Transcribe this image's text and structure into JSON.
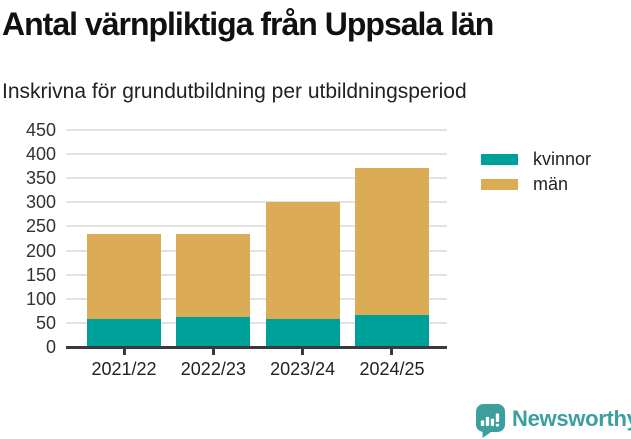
{
  "chart_data": {
    "type": "bar",
    "stacked": true,
    "title": "Antal värnpliktiga från Uppsala län",
    "subtitle": "Inskrivna för grundutbildning per utbildningsperiod",
    "categories": [
      "2021/22",
      "2022/23",
      "2023/24",
      "2024/25"
    ],
    "series": [
      {
        "name": "kvinnor",
        "color": "#00A09A",
        "values": [
          58,
          63,
          58,
          67
        ]
      },
      {
        "name": "män",
        "color": "#DBAC55",
        "values": [
          176,
          171,
          242,
          304
        ]
      }
    ],
    "stack_totals": [
      234,
      234,
      300,
      371
    ],
    "xlabel": "",
    "ylabel": "",
    "ylim": [
      0,
      450
    ],
    "ytick_step": 50,
    "yticks": [
      0,
      50,
      100,
      150,
      200,
      250,
      300,
      350,
      400,
      450
    ],
    "grid": true,
    "legend_position": "right-top"
  },
  "branding": {
    "name": "Newsworthy",
    "color": "#3C9F9E"
  },
  "style_colors": {
    "grid": "#E2E2E2",
    "axis": "#3A3A3A",
    "tick_text": "#333333",
    "title_text": "#111111"
  }
}
